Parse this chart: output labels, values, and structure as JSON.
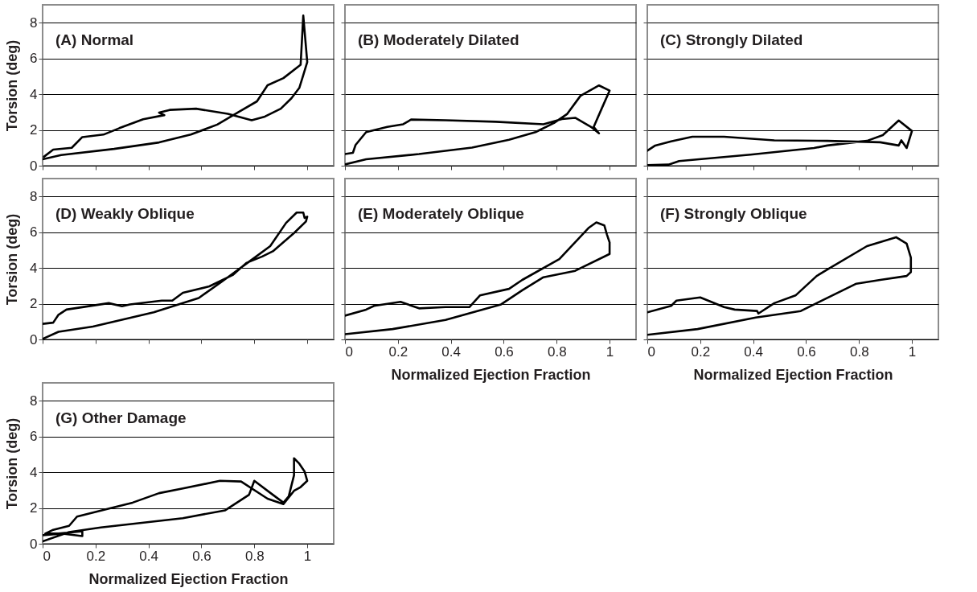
{
  "chart_data": [
    {
      "type": "line",
      "title": "(A) Normal",
      "ylabel": "Torsion (deg)",
      "xlim": [
        0,
        1.1
      ],
      "ylim": [
        0,
        9
      ],
      "xticks": [
        0,
        0.2,
        0.4,
        0.6,
        0.8,
        1
      ],
      "yticks": [
        0,
        2,
        4,
        6,
        8
      ],
      "grid": "y",
      "tick_labels": "y",
      "series": [
        {
          "color": "#000000",
          "x": [
            0,
            0.07,
            0.27,
            0.44,
            0.56,
            0.66,
            0.74,
            0.81,
            0.85,
            0.91,
            0.975,
            0.985,
            1.0,
            0.985,
            0.97,
            0.94,
            0.9,
            0.84,
            0.79,
            0.7,
            0.58,
            0.48,
            0.44,
            0.46,
            0.38,
            0.29,
            0.23,
            0.15,
            0.11,
            0.04,
            0.005
          ],
          "values": [
            0.36,
            0.6,
            0.94,
            1.3,
            1.74,
            2.3,
            3.0,
            3.6,
            4.5,
            4.9,
            5.65,
            8.4,
            5.8,
            5.07,
            4.35,
            3.77,
            3.19,
            2.75,
            2.54,
            2.9,
            3.19,
            3.12,
            2.97,
            2.83,
            2.6,
            2.1,
            1.74,
            1.6,
            1.0,
            0.9,
            0.5
          ]
        }
      ]
    },
    {
      "type": "line",
      "title": "(B) Moderately Dilated",
      "xlim": [
        0,
        1.1
      ],
      "ylim": [
        0,
        9
      ],
      "xticks": [
        0,
        0.2,
        0.4,
        0.6,
        0.8,
        1
      ],
      "yticks": [
        0,
        2,
        4,
        6,
        8
      ],
      "grid": "y",
      "tick_labels": false,
      "series": [
        {
          "color": "#000000",
          "x": [
            0,
            0.08,
            0.28,
            0.48,
            0.62,
            0.72,
            0.79,
            0.84,
            0.89,
            0.96,
            1.0,
            0.97,
            0.94,
            0.96,
            0.93,
            0.87,
            0.82,
            0.75,
            0.57,
            0.38,
            0.25,
            0.22,
            0.16,
            0.08,
            0.04,
            0.03,
            0
          ],
          "values": [
            0.07,
            0.36,
            0.65,
            1.01,
            1.45,
            1.88,
            2.39,
            2.9,
            3.91,
            4.49,
            4.2,
            3.19,
            2.17,
            1.81,
            2.17,
            2.68,
            2.61,
            2.32,
            2.46,
            2.54,
            2.58,
            2.32,
            2.17,
            1.88,
            1.16,
            0.72,
            0.65
          ]
        }
      ]
    },
    {
      "type": "line",
      "title": "(C) Strongly Dilated",
      "xlim": [
        0,
        1.1
      ],
      "ylim": [
        0,
        9
      ],
      "xticks": [
        0,
        0.2,
        0.4,
        0.6,
        0.8,
        1
      ],
      "yticks": [
        0,
        2,
        4,
        6,
        8
      ],
      "grid": "y",
      "tick_labels": false,
      "series": [
        {
          "color": "#000000",
          "x": [
            0,
            0.08,
            0.12,
            0.39,
            0.63,
            0.68,
            0.83,
            0.89,
            0.95,
            1.0,
            0.98,
            0.96,
            0.95,
            0.88,
            0.68,
            0.48,
            0.29,
            0.17,
            0.09,
            0.03,
            0
          ],
          "values": [
            0.03,
            0.06,
            0.26,
            0.62,
            0.99,
            1.13,
            1.39,
            1.71,
            2.53,
            1.94,
            0.99,
            1.42,
            1.13,
            1.31,
            1.39,
            1.42,
            1.62,
            1.62,
            1.36,
            1.13,
            0.84
          ]
        }
      ]
    },
    {
      "type": "line",
      "title": "(D) Weakly Oblique",
      "ylabel": "Torsion (deg)",
      "xlim": [
        0,
        1.1
      ],
      "ylim": [
        0,
        9
      ],
      "xticks": [
        0,
        0.2,
        0.4,
        0.6,
        0.8,
        1
      ],
      "yticks": [
        0,
        2,
        4,
        6,
        8
      ],
      "grid": "y",
      "tick_labels": "y",
      "series": [
        {
          "color": "#000000",
          "x": [
            0,
            0.06,
            0.19,
            0.42,
            0.59,
            0.68,
            0.78,
            0.86,
            0.92,
            0.96,
            0.985,
            0.99,
            1.0,
            0.995,
            0.95,
            0.87,
            0.83,
            0.77,
            0.72,
            0.63,
            0.53,
            0.49,
            0.45,
            0.33,
            0.3,
            0.25,
            0.09,
            0.06,
            0.04,
            0
          ],
          "values": [
            0.03,
            0.43,
            0.72,
            1.52,
            2.32,
            3.26,
            4.35,
            5.22,
            6.52,
            7.1,
            7.1,
            6.8,
            6.87,
            6.6,
            5.95,
            4.93,
            4.64,
            4.28,
            3.62,
            2.97,
            2.61,
            2.17,
            2.17,
            1.96,
            1.86,
            2.03,
            1.67,
            1.38,
            0.94,
            0.87
          ]
        }
      ]
    },
    {
      "type": "line",
      "title": "(E) Moderately Oblique",
      "xlabel": "Normalized Ejection Fraction",
      "xlim": [
        0,
        1.1
      ],
      "ylim": [
        0,
        9
      ],
      "xticks": [
        0,
        0.2,
        0.4,
        0.6,
        0.8,
        1
      ],
      "yticks": [
        0,
        2,
        4,
        6,
        8
      ],
      "grid": "y",
      "tick_labels": "x",
      "series": [
        {
          "color": "#000000",
          "x": [
            0,
            0.18,
            0.38,
            0.59,
            0.67,
            0.75,
            0.87,
            1.0,
            1.0,
            0.99,
            0.98,
            0.95,
            0.92,
            0.81,
            0.67,
            0.62,
            0.51,
            0.47,
            0.38,
            0.28,
            0.21,
            0.11,
            0.08,
            0
          ],
          "values": [
            0.29,
            0.58,
            1.09,
            1.96,
            2.75,
            3.48,
            3.84,
            4.78,
            5.43,
            5.87,
            6.38,
            6.55,
            6.23,
            4.49,
            3.33,
            2.83,
            2.46,
            1.81,
            1.81,
            1.74,
            2.1,
            1.88,
            1.67,
            1.33
          ]
        }
      ]
    },
    {
      "type": "line",
      "title": "(F) Strongly Oblique",
      "xlabel": "Normalized Ejection Fraction",
      "xlim": [
        0,
        1.1
      ],
      "ylim": [
        0,
        9
      ],
      "xticks": [
        0,
        0.2,
        0.4,
        0.6,
        0.8,
        1
      ],
      "yticks": [
        0,
        2,
        4,
        6,
        8
      ],
      "grid": "y",
      "tick_labels": "x",
      "series": [
        {
          "color": "#000000",
          "x": [
            0,
            0.19,
            0.41,
            0.58,
            0.64,
            0.79,
            0.88,
            0.98,
            0.996,
            0.996,
            0.98,
            0.94,
            0.83,
            0.68,
            0.64,
            0.56,
            0.48,
            0.42,
            0.415,
            0.33,
            0.29,
            0.2,
            0.11,
            0.09,
            0
          ],
          "values": [
            0.26,
            0.58,
            1.23,
            1.59,
            2.03,
            3.12,
            3.33,
            3.55,
            3.77,
            4.57,
            5.36,
            5.72,
            5.22,
            3.91,
            3.55,
            2.46,
            2.03,
            1.45,
            1.59,
            1.67,
            1.81,
            2.35,
            2.17,
            1.88,
            1.52
          ]
        }
      ]
    },
    {
      "type": "line",
      "title": "(G) Other Damage",
      "xlabel": "Normalized Ejection Fraction",
      "ylabel": "Torsion (deg)",
      "xlim": [
        0,
        1.1
      ],
      "ylim": [
        0,
        9
      ],
      "xticks": [
        0,
        0.2,
        0.4,
        0.6,
        0.8,
        1
      ],
      "yticks": [
        0,
        2,
        4,
        6,
        8
      ],
      "grid": "y",
      "series": [
        {
          "color": "#000000",
          "x": [
            0,
            0.1,
            0.22,
            0.53,
            0.69,
            0.78,
            0.8,
            0.87,
            0.91,
            0.93,
            0.95,
            0.95,
            0.97,
            0.99,
            1.0,
            0.975,
            0.95,
            0.91,
            0.85,
            0.75,
            0.67,
            0.53,
            0.44,
            0.34,
            0.26,
            0.13,
            0.1,
            0.04,
            0.01,
            0.06,
            0.15,
            0.15,
            0.07,
            0
          ],
          "values": [
            0.13,
            0.65,
            0.91,
            1.43,
            1.87,
            2.74,
            3.52,
            2.74,
            2.3,
            2.65,
            3.83,
            4.78,
            4.48,
            4.04,
            3.52,
            3.17,
            2.96,
            2.22,
            2.52,
            3.48,
            3.52,
            3.09,
            2.83,
            2.3,
            2.0,
            1.52,
            1.0,
            0.78,
            0.57,
            0.57,
            0.7,
            0.43,
            0.57,
            0.48
          ]
        }
      ]
    }
  ]
}
